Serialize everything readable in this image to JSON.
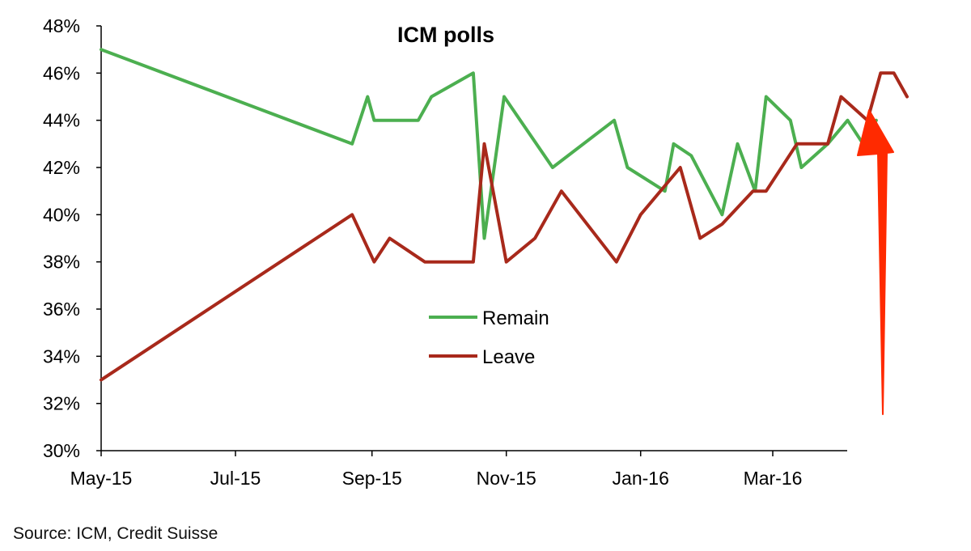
{
  "chart_data": {
    "type": "line",
    "title": "ICM polls",
    "source_note": "Source: ICM, Credit Suisse",
    "xlabel": "",
    "ylabel": "",
    "ylim": [
      30,
      48
    ],
    "y_ticks": [
      "30%",
      "32%",
      "34%",
      "36%",
      "38%",
      "40%",
      "42%",
      "44%",
      "46%",
      "48%"
    ],
    "y_tick_values": [
      30,
      32,
      34,
      36,
      38,
      40,
      42,
      44,
      46,
      48
    ],
    "xlim": [
      "2015-05-01",
      "2016-04-19"
    ],
    "x_ticks": [
      "May-15",
      "Jul-15",
      "Sep-15",
      "Nov-15",
      "Jan-16",
      "Mar-16"
    ],
    "x_tick_dates": [
      "2015-05-01",
      "2015-07-01",
      "2015-09-01",
      "2015-11-01",
      "2016-01-01",
      "2016-03-01"
    ],
    "legend_position": "center",
    "grid": false,
    "series": [
      {
        "name": "Remain",
        "color": "#4caf50",
        "points": [
          [
            "2015-05-01",
            47
          ],
          [
            "2015-08-23",
            43
          ],
          [
            "2015-08-30",
            45
          ],
          [
            "2015-09-02",
            44
          ],
          [
            "2015-09-22",
            44
          ],
          [
            "2015-09-28",
            45
          ],
          [
            "2015-10-17",
            46
          ],
          [
            "2015-10-22",
            39
          ],
          [
            "2015-10-31",
            45
          ],
          [
            "2015-11-22",
            42
          ],
          [
            "2015-12-20",
            44
          ],
          [
            "2015-12-26",
            42
          ],
          [
            "2016-01-12",
            41
          ],
          [
            "2016-01-16",
            43
          ],
          [
            "2016-01-24",
            42.5
          ],
          [
            "2016-02-07",
            40
          ],
          [
            "2016-02-14",
            43
          ],
          [
            "2016-02-22",
            41
          ],
          [
            "2016-02-27",
            45
          ],
          [
            "2016-03-09",
            44
          ],
          [
            "2016-03-14",
            42
          ],
          [
            "2016-03-26",
            43
          ],
          [
            "2016-04-04",
            44
          ],
          [
            "2016-04-11",
            43
          ],
          [
            "2016-04-17",
            44
          ]
        ]
      },
      {
        "name": "Leave",
        "color": "#a8291b",
        "points": [
          [
            "2015-05-01",
            33
          ],
          [
            "2015-08-23",
            40
          ],
          [
            "2015-09-02",
            38
          ],
          [
            "2015-09-09",
            39
          ],
          [
            "2015-09-25",
            38
          ],
          [
            "2015-10-17",
            38
          ],
          [
            "2015-10-22",
            43
          ],
          [
            "2015-11-01",
            38
          ],
          [
            "2015-11-14",
            39
          ],
          [
            "2015-11-26",
            41
          ],
          [
            "2015-12-21",
            38
          ],
          [
            "2016-01-01",
            40
          ],
          [
            "2016-01-19",
            42
          ],
          [
            "2016-01-28",
            39
          ],
          [
            "2016-02-07",
            39.6
          ],
          [
            "2016-02-21",
            41
          ],
          [
            "2016-02-27",
            41
          ],
          [
            "2016-03-12",
            43
          ],
          [
            "2016-03-26",
            43
          ],
          [
            "2016-04-01",
            45
          ],
          [
            "2016-04-13",
            44
          ],
          [
            "2016-04-19",
            46
          ],
          [
            "2016-04-25",
            46
          ],
          [
            "2016-05-01",
            45
          ]
        ]
      }
    ],
    "annotations": [
      {
        "type": "arrow",
        "color": "#ff2a00",
        "direction": "up"
      }
    ]
  }
}
